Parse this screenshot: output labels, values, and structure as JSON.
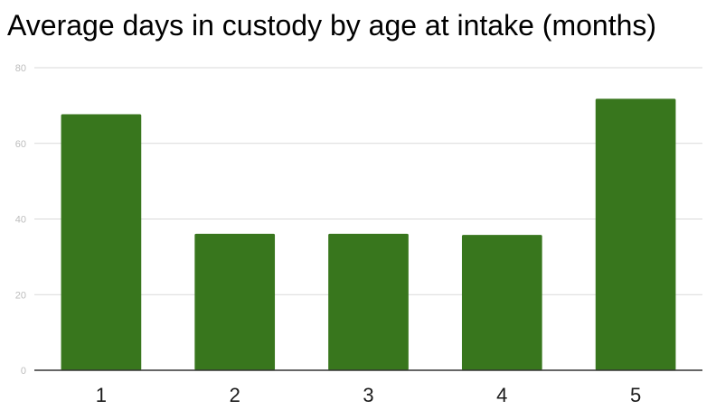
{
  "chart_data": {
    "type": "bar",
    "title": "Average days in custody by age at intake (months)",
    "xlabel": "",
    "ylabel": "",
    "categories": [
      "1",
      "2",
      "3",
      "4",
      "5"
    ],
    "values": [
      67.7,
      36.1,
      36.1,
      35.8,
      71.8
    ],
    "ylim": [
      0,
      80
    ],
    "yticks": [
      0,
      20,
      40,
      60,
      80
    ],
    "grid": true,
    "legend": "none",
    "bar_color": "#38761d",
    "grid_color": "#d9d9d9",
    "axis_color": "#333333"
  }
}
